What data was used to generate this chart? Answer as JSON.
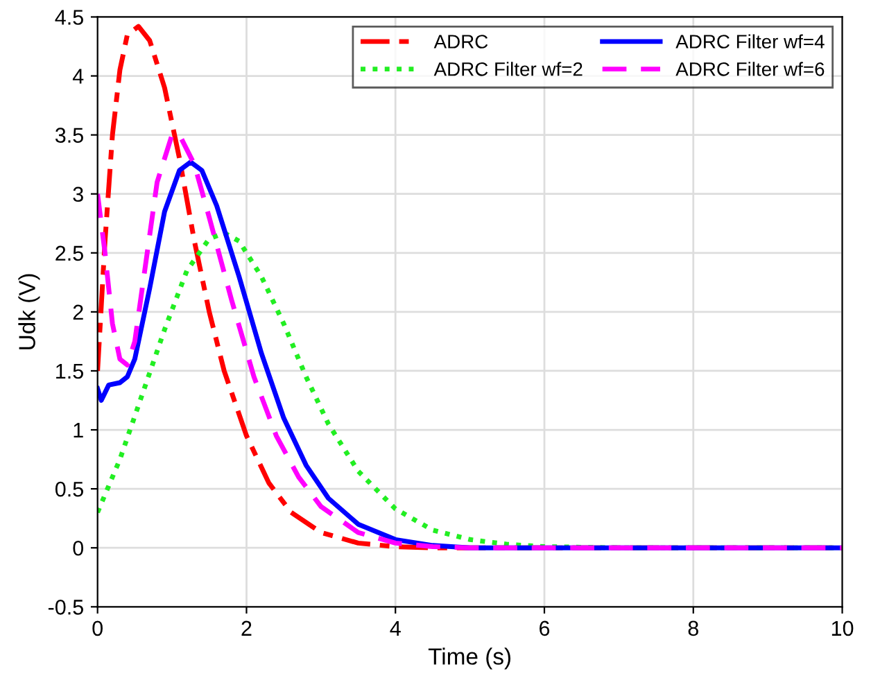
{
  "chart_data": {
    "type": "line",
    "xlabel": "Time (s)",
    "ylabel": "Udk (V)",
    "xlim": [
      0,
      10
    ],
    "xticks": [
      0,
      2,
      4,
      6,
      8,
      10
    ],
    "ylim": [
      -0.5,
      4.5
    ],
    "yticks": [
      -0.5,
      0,
      0.5,
      1,
      1.5,
      2,
      2.5,
      3,
      3.5,
      4,
      4.5
    ],
    "grid": true,
    "legend": "top right",
    "marker": "none",
    "series": [
      {
        "name": "ADRC",
        "color": "#ff0000",
        "line_style": "dashdot",
        "x": [
          0,
          0.1,
          0.2,
          0.3,
          0.4,
          0.55,
          0.7,
          0.9,
          1.1,
          1.3,
          1.5,
          1.7,
          2.0,
          2.3,
          2.6,
          3.0,
          3.5,
          4,
          4.5,
          10
        ],
        "values": [
          1.5,
          2.6,
          3.5,
          4.05,
          4.35,
          4.42,
          4.3,
          3.9,
          3.3,
          2.6,
          2.0,
          1.5,
          0.95,
          0.55,
          0.3,
          0.13,
          0.04,
          0.01,
          0,
          0
        ]
      },
      {
        "name": "ADRC Filter wf=2",
        "color": "#22ee22",
        "line_style": "dotted",
        "x": [
          0,
          0.3,
          0.6,
          0.9,
          1.2,
          1.5,
          1.7,
          1.9,
          2.2,
          2.5,
          2.8,
          3.1,
          3.5,
          4,
          4.5,
          5,
          5.5,
          6,
          7,
          10
        ],
        "values": [
          0.3,
          0.75,
          1.3,
          1.85,
          2.35,
          2.62,
          2.67,
          2.6,
          2.3,
          1.9,
          1.45,
          1.05,
          0.65,
          0.33,
          0.15,
          0.07,
          0.03,
          0.01,
          0,
          0
        ]
      },
      {
        "name": "ADRC Filter wf=4",
        "color": "#0000ff",
        "line_style": "solid",
        "x": [
          0,
          0.05,
          0.15,
          0.3,
          0.4,
          0.5,
          0.7,
          0.9,
          1.1,
          1.25,
          1.4,
          1.6,
          1.9,
          2.2,
          2.5,
          2.8,
          3.1,
          3.5,
          4,
          4.5,
          5,
          10
        ],
        "values": [
          1.35,
          1.25,
          1.38,
          1.4,
          1.45,
          1.6,
          2.2,
          2.85,
          3.2,
          3.27,
          3.2,
          2.9,
          2.3,
          1.65,
          1.1,
          0.7,
          0.42,
          0.2,
          0.07,
          0.02,
          0,
          0
        ]
      },
      {
        "name": "ADRC Filter wf=6",
        "color": "#ff00ff",
        "line_style": "dashed",
        "x": [
          0,
          0.1,
          0.2,
          0.3,
          0.4,
          0.5,
          0.6,
          0.8,
          1.0,
          1.1,
          1.3,
          1.5,
          1.8,
          2.1,
          2.4,
          2.7,
          3.0,
          3.5,
          4,
          4.5,
          5,
          10
        ],
        "values": [
          3.0,
          2.5,
          1.9,
          1.6,
          1.55,
          1.75,
          2.2,
          3.1,
          3.5,
          3.5,
          3.25,
          2.8,
          2.1,
          1.45,
          0.95,
          0.6,
          0.35,
          0.13,
          0.04,
          0.01,
          0,
          0
        ]
      }
    ]
  }
}
